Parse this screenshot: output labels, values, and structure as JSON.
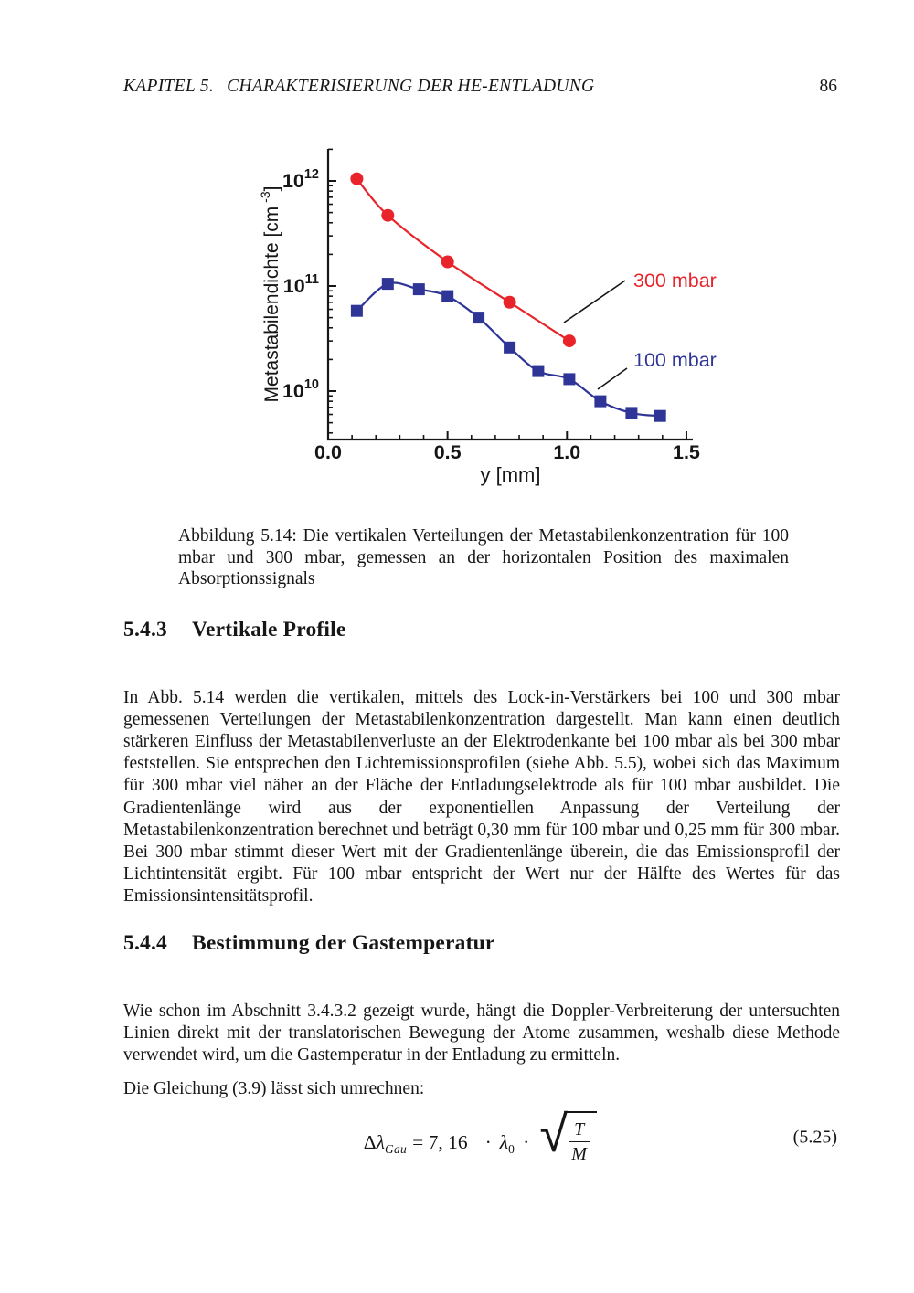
{
  "header": {
    "chapter_label": "KAPITEL 5.",
    "chapter_title": "CHARAKTERISIERUNG DER HE-ENTLADUNG",
    "page_number": "86"
  },
  "figure": {
    "caption": "Abbildung 5.14: Die vertikalen Verteilungen der Metastabilenkonzentration für 100 mbar und 300 mbar, gemessen an der horizontalen Position des maximalen Absorptionssignals"
  },
  "chart_data": {
    "type": "line",
    "title": "",
    "xlabel": "y [mm]",
    "ylabel_main": "Metastabilendichte [cm",
    "ylabel_sup": "-3",
    "ylabel_close": "]",
    "log_y": true,
    "grid": false,
    "xlim": [
      0,
      1.53
    ],
    "ylim": [
      3600000000.0,
      2000000000000.0
    ],
    "x_tick_values": [
      0,
      0.5,
      1.0,
      1.5
    ],
    "x_tick_labels": [
      "0.0",
      "0.5",
      "1.0",
      "1.5"
    ],
    "x_minor_step": 0.1,
    "y_major_ticks": [
      10000000000.0,
      100000000000.0,
      1000000000000.0
    ],
    "axis_color": "#161616",
    "legend_position": "annotations pointing to curves",
    "series": [
      {
        "name": "300 mbar",
        "color": "#e8232a",
        "marker": "circle",
        "x": [
          0.12,
          0.25,
          0.5,
          0.76,
          1.01
        ],
        "y": [
          1050000000000.0,
          470000000000.0,
          170000000000.0,
          70000000000.0,
          30000000000.0
        ]
      },
      {
        "name": "100 mbar",
        "color": "#2e3596",
        "marker": "square",
        "x": [
          0.12,
          0.25,
          0.38,
          0.5,
          0.63,
          0.76,
          0.88,
          1.01,
          1.14,
          1.27,
          1.39
        ],
        "y": [
          58000000000.0,
          105000000000.0,
          93000000000.0,
          80000000000.0,
          50000000000.0,
          26000000000.0,
          15500000000.0,
          13000000000.0,
          8000000000.0,
          6200000000.0,
          5800000000.0
        ]
      }
    ]
  },
  "sections": [
    {
      "number": "5.4.3",
      "title": "Vertikale Profile",
      "body": "In Abb. 5.14 werden die vertikalen, mittels des Lock-in-Verstärkers bei 100 und 300 mbar gemessenen Verteilungen der Metastabilenkonzentration dargestellt. Man kann einen deutlich stärkeren Einfluss der Metastabilenverluste an der Elektrodenkante bei 100 mbar als bei 300 mbar feststellen. Sie entsprechen den Lichtemissionsprofilen (siehe Abb. 5.5), wobei sich das Maximum für 300 mbar viel näher an der Fläche der Entladungselektrode als für 100 mbar ausbildet. Die Gradientenlänge wird aus der exponentiellen Anpassung der Verteilung der Metastabilenkonzentration berechnet und beträgt 0,30 mm für 100 mbar und 0,25 mm für 300 mbar. Bei 300 mbar stimmt dieser Wert mit der Gradientenlänge überein, die das Emissionsprofil der Lichtintensität ergibt. Für 100 mbar entspricht der Wert nur der Hälfte des Wertes für das Emissionsintensitätsprofil."
    },
    {
      "number": "5.4.4",
      "title": "Bestimmung der Gastemperatur",
      "body": "Wie schon im Abschnitt 3.4.3.2 gezeigt wurde, hängt die Doppler-Verbreiterung der untersuchten Linien direkt mit der translatorischen Bewegung der Atome zusammen, weshalb diese Methode verwendet wird, um die Gastemperatur in der Entladung zu ermitteln."
    }
  ],
  "equation_intro": "Die Gleichung (3.9) lässt sich umrechnen:",
  "equation": {
    "delta": "Δ",
    "lambda": "λ",
    "sub_gau": "Gau",
    "eq_coeff": "= 7, 16",
    "cdot": "·",
    "lambda0": "λ",
    "sub_zero": "0",
    "radical": "√",
    "numerator": "T",
    "denominator": "M",
    "number": "(5.25)"
  }
}
